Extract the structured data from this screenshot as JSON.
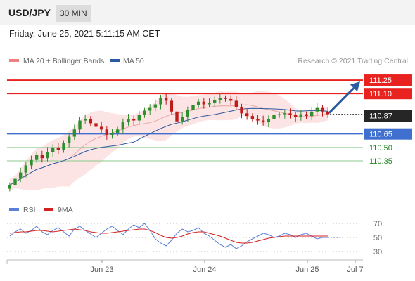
{
  "header": {
    "symbol": "USD/JPY",
    "timeframe": "30 MIN"
  },
  "datetime": "Friday, June 25, 2021 5:11:15 AM CET",
  "legend": {
    "ma20_label": "MA 20 + Bollinger Bands",
    "ma50_label": "MA 50",
    "copyright": "Research © 2021 Trading Central",
    "rsi_label": "RSI",
    "ma9_label": "9MA"
  },
  "colors": {
    "resistance": "#e8231f",
    "support": "#3f6fcf",
    "target": "#1f8a1f",
    "ma50": "#2c5aa0",
    "bollinger": "#f9c3c3",
    "candle_up": "#2f8f2f",
    "candle_down": "#c01b1b",
    "rsi": "#5b7fd6",
    "rsi_ma": "#d42020",
    "arrow": "#2c5aa0"
  },
  "chart_data": [
    {
      "type": "candlestick",
      "title": "USD/JPY",
      "ylim": [
        109.99,
        111.36
      ],
      "x_ticks": [
        "Jun 23",
        "Jun 24",
        "Jun 25",
        "Jul 7"
      ],
      "current_price": "110.87",
      "levels": [
        {
          "label": "111.25",
          "value": 111.25,
          "kind": "resistance"
        },
        {
          "label": "111.10",
          "value": 111.1,
          "kind": "resistance"
        },
        {
          "label": "110.65",
          "value": 110.65,
          "kind": "support"
        },
        {
          "label": "110.50",
          "value": 110.5,
          "kind": "target"
        },
        {
          "label": "110.35",
          "value": 110.35,
          "kind": "target"
        }
      ],
      "series": [
        {
          "name": "MA 20 + Bollinger Bands"
        },
        {
          "name": "MA 50"
        }
      ],
      "close": [
        110.08,
        110.15,
        110.22,
        110.3,
        110.36,
        110.42,
        110.38,
        110.45,
        110.5,
        110.47,
        110.55,
        110.62,
        110.7,
        110.8,
        110.82,
        110.77,
        110.73,
        110.7,
        110.64,
        110.66,
        110.7,
        110.78,
        110.82,
        110.8,
        110.86,
        110.91,
        110.94,
        110.98,
        111.05,
        111.02,
        110.9,
        110.79,
        110.84,
        110.92,
        110.97,
        111.01,
        110.98,
        111.0,
        111.03,
        111.05,
        111.04,
        111.02,
        110.95,
        110.88,
        110.85,
        110.82,
        110.8,
        110.78,
        110.82,
        110.86,
        110.87,
        110.88,
        110.86,
        110.84,
        110.87,
        110.85,
        110.9,
        110.94,
        110.9,
        110.87
      ]
    },
    {
      "type": "line",
      "title": "RSI",
      "ylim": [
        20,
        80
      ],
      "y_ticks": [
        70,
        50,
        30
      ],
      "series": [
        {
          "name": "RSI",
          "values": [
            52,
            58,
            62,
            56,
            60,
            66,
            58,
            54,
            60,
            64,
            58,
            52,
            62,
            66,
            60,
            55,
            50,
            56,
            62,
            66,
            60,
            54,
            62,
            68,
            64,
            70,
            60,
            48,
            42,
            38,
            46,
            56,
            62,
            58,
            60,
            64,
            56,
            52,
            46,
            40,
            36,
            40,
            34,
            38,
            44,
            48,
            52,
            56,
            54,
            50,
            52,
            56,
            54,
            50,
            54,
            56,
            52,
            48,
            50,
            50
          ]
        },
        {
          "name": "9MA",
          "values": [
            56,
            57,
            58,
            58,
            59,
            60,
            60,
            59,
            58,
            59,
            60,
            61,
            62,
            61,
            60,
            58,
            57,
            56,
            56,
            57,
            58,
            59,
            60,
            61,
            62,
            62,
            60,
            57,
            53,
            50,
            49,
            50,
            52,
            55,
            57,
            58,
            58,
            56,
            54,
            52,
            49,
            46,
            43,
            42,
            42,
            43,
            45,
            47,
            49,
            50,
            51,
            52,
            52,
            52,
            52,
            52,
            52,
            52,
            52,
            52
          ]
        }
      ]
    }
  ]
}
